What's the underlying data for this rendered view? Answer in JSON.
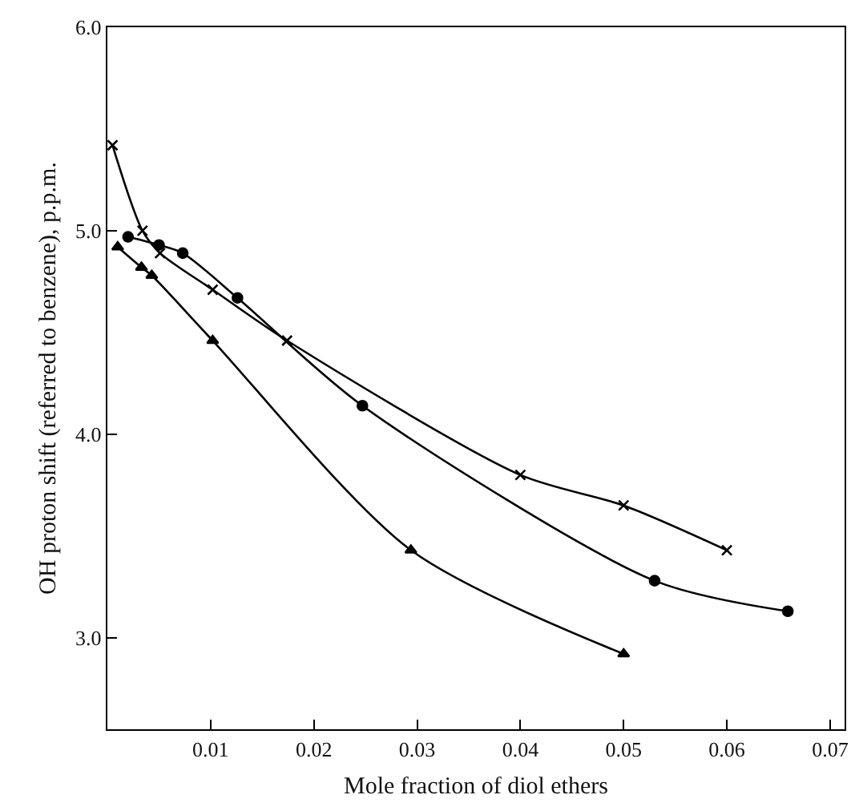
{
  "chart_data": {
    "type": "line",
    "xlabel": "Mole fraction of diol ethers",
    "ylabel": "OH proton shift (referred to benzene), p.p.m.",
    "xlim": [
      0,
      0.0714
    ],
    "ylim": [
      2.55,
      6.0
    ],
    "xticks": [
      0.01,
      0.02,
      0.03,
      0.04,
      0.05,
      0.06,
      0.07
    ],
    "yticks": [
      {
        "value": 3,
        "label": "3.0"
      },
      {
        "value": 4,
        "label": "4.0"
      },
      {
        "value": 5,
        "label": "5.0"
      },
      {
        "value": 6,
        "label": "6.0"
      }
    ],
    "line_style": "solid",
    "series": [
      {
        "color": "#000000",
        "marker": "cross",
        "x": [
          0.0005,
          0.0034,
          0.0051,
          0.0102,
          0.0174,
          0.04,
          0.05,
          0.06
        ],
        "values": [
          5.42,
          5.0,
          4.89,
          4.71,
          4.46,
          3.8,
          3.65,
          3.43
        ]
      },
      {
        "color": "#000000",
        "marker": "circle",
        "x": [
          0.002,
          0.005,
          0.0073,
          0.0126,
          0.0247,
          0.053,
          0.0659
        ],
        "values": [
          4.97,
          4.93,
          4.89,
          4.67,
          4.14,
          3.28,
          3.13
        ]
      },
      {
        "color": "#000000",
        "marker": "triangle",
        "x": [
          0.001,
          0.0033,
          0.0043,
          0.0102,
          0.0294,
          0.05
        ],
        "values": [
          4.92,
          4.82,
          4.78,
          4.46,
          3.43,
          2.92
        ]
      }
    ]
  }
}
